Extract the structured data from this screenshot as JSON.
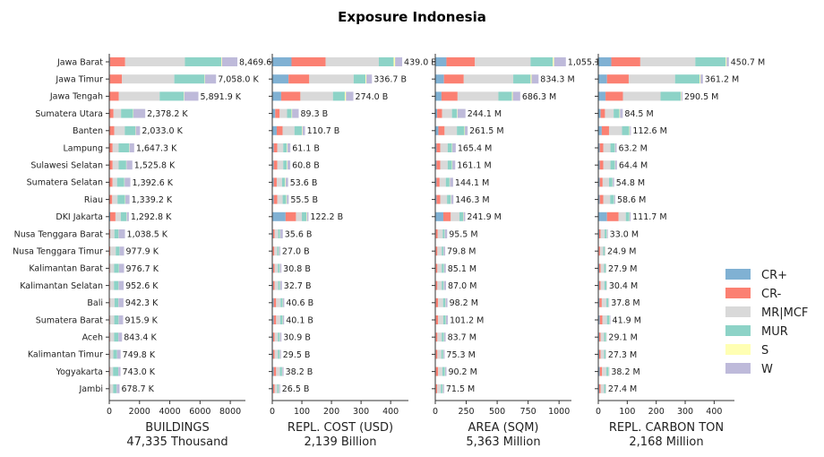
{
  "chart_data": {
    "type": "bar",
    "title": "Exposure Indonesia",
    "categories": [
      "Jawa Barat",
      "Jawa Timur",
      "Jawa Tengah",
      "Sumatera Utara",
      "Banten",
      "Lampung",
      "Sulawesi Selatan",
      "Sumatera Selatan",
      "Riau",
      "DKI Jakarta",
      "Nusa Tenggara Barat",
      "Nusa Tenggara Timur",
      "Kalimantan Barat",
      "Kalimantan Selatan",
      "Bali",
      "Sumatera Barat",
      "Aceh",
      "Kalimantan Timur",
      "Yogyakarta",
      "Jambi"
    ],
    "legend": {
      "position": "right",
      "entries": [
        {
          "name": "CR+",
          "color": "#80b1d3"
        },
        {
          "name": "CR-",
          "color": "#fb8072"
        },
        {
          "name": "MR|MCF",
          "color": "#d9d9d9"
        },
        {
          "name": "MUR",
          "color": "#8dd3c7"
        },
        {
          "name": "S",
          "color": "#ffffb3"
        },
        {
          "name": "W",
          "color": "#bebada"
        }
      ]
    },
    "panels": [
      {
        "xlabel": "BUILDINGS",
        "total_label": "47,335 Thousand",
        "xlim": [
          0,
          9000
        ],
        "xticks": [
          0,
          2000,
          4000,
          6000,
          8000
        ],
        "tick_labels": [
          "0",
          "2000",
          "4000",
          "6000",
          "8000"
        ],
        "value_labels": [
          "8,469.6 K",
          "7,058.0 K",
          "5,891.9 K",
          "2,378.2 K",
          "2,033.0 K",
          "1,647.3 K",
          "1,525.8 K",
          "1,392.6 K",
          "1,339.2 K",
          "1,292.8 K",
          "1,038.5 K",
          "977.9 K",
          "976.7 K",
          "952.6 K",
          "942.3 K",
          "915.9 K",
          "843.4 K",
          "749.8 K",
          "743.0 K",
          "678.7 K"
        ],
        "series": [
          {
            "name": "CR+",
            "values": [
              50,
              40,
              30,
              30,
              25,
              20,
              20,
              15,
              15,
              60,
              10,
              10,
              10,
              10,
              10,
              10,
              10,
              10,
              10,
              10
            ]
          },
          {
            "name": "CR-",
            "values": [
              1000,
              800,
              600,
              250,
              300,
              200,
              200,
              200,
              180,
              350,
              50,
              50,
              40,
              40,
              40,
              40,
              40,
              40,
              40,
              30
            ]
          },
          {
            "name": "MR|MCF",
            "values": [
              3950,
              3460,
              2700,
              500,
              700,
              400,
              400,
              300,
              350,
              350,
              280,
              370,
              270,
              260,
              300,
              280,
              270,
              220,
              200,
              220
            ]
          },
          {
            "name": "MUR",
            "values": [
              2400,
              2000,
              1600,
              800,
              700,
              700,
              500,
              480,
              500,
              382,
              270,
              247,
              320,
              300,
              250,
              285,
              273,
              235,
              343,
              220
            ]
          },
          {
            "name": "S",
            "values": [
              50,
              30,
              30,
              20,
              20,
              20,
              20,
              20,
              20,
              20,
              10,
              10,
              10,
              10,
              10,
              10,
              10,
              10,
              10,
              10
            ]
          },
          {
            "name": "W",
            "values": [
              1019.6,
              728,
              931.9,
              778.2,
              288,
              307.3,
              385.8,
              377.6,
              274.2,
              130.8,
              418.5,
              290.9,
              326.7,
              332.6,
              332.3,
              290.9,
              240.4,
              234.8,
              140,
              188.7
            ]
          }
        ]
      },
      {
        "xlabel": "REPL. COST (USD)",
        "total_label": "2,139 Billion",
        "xlim": [
          0,
          460
        ],
        "xticks": [
          0,
          100,
          200,
          300,
          400
        ],
        "tick_labels": [
          "0",
          "100",
          "200",
          "300",
          "400"
        ],
        "value_labels": [
          "439.0 B",
          "336.7 B",
          "274.0 B",
          "89.3 B",
          "110.7 B",
          "61.1 B",
          "60.8 B",
          "53.6 B",
          "55.5 B",
          "122.2 B",
          "35.6 B",
          "27.0 B",
          "30.8 B",
          "32.7 B",
          "40.6 B",
          "40.1 B",
          "30.9 B",
          "29.5 B",
          "38.2 B",
          "26.5 B"
        ],
        "series": [
          {
            "name": "CR+",
            "values": [
              65,
              55,
              30,
              10,
              15,
              5,
              5,
              5,
              5,
              45,
              3,
              2,
              3,
              3,
              5,
              5,
              3,
              3,
              5,
              3
            ]
          },
          {
            "name": "CR-",
            "values": [
              115,
              70,
              65,
              15,
              20,
              12,
              12,
              10,
              12,
              35,
              5,
              5,
              5,
              5,
              8,
              8,
              5,
              5,
              8,
              5
            ]
          },
          {
            "name": "MR|MCF",
            "values": [
              180,
              150,
              110,
              25,
              40,
              20,
              20,
              18,
              18,
              20,
              12,
              10,
              11,
              12,
              15,
              14,
              11,
              11,
              13,
              9
            ]
          },
          {
            "name": "MUR",
            "values": [
              50,
              40,
              40,
              15,
              25,
              12,
              12,
              10,
              12,
              15,
              6,
              5,
              6,
              6,
              7,
              8,
              6,
              6,
              7,
              5
            ]
          },
          {
            "name": "S",
            "values": [
              5,
              3,
              4,
              2,
              2,
              2,
              2,
              2,
              2,
              2,
              1,
              1,
              1,
              1,
              1,
              1,
              1,
              1,
              1,
              1
            ]
          },
          {
            "name": "W",
            "values": [
              24,
              18.7,
              25,
              22.3,
              8.7,
              10.1,
              9.8,
              8.6,
              6.5,
              5.2,
              8.6,
              4,
              4.8,
              5.7,
              4.6,
              4.1,
              4.9,
              3.5,
              4.2,
              3.5
            ]
          }
        ]
      },
      {
        "xlabel": "AREA (SQM)",
        "total_label": "5,363 Million",
        "xlim": [
          0,
          1100
        ],
        "xticks": [
          0,
          250,
          500,
          750,
          1000
        ],
        "tick_labels": [
          "0",
          "250",
          "500",
          "750",
          "1000"
        ],
        "value_labels": [
          "1,055.1 M",
          "834.3 M",
          "686.3 M",
          "244.1 M",
          "261.5 M",
          "165.4 M",
          "161.1 M",
          "144.1 M",
          "146.3 M",
          "241.9 M",
          "95.5 M",
          "79.8 M",
          "85.1 M",
          "87.0 M",
          "98.2 M",
          "101.2 M",
          "83.7 M",
          "75.3 M",
          "90.2 M",
          "71.5 M"
        ],
        "series": [
          {
            "name": "CR+",
            "values": [
              90,
              70,
              50,
              15,
              25,
              10,
              10,
              10,
              10,
              65,
              5,
              5,
              5,
              5,
              5,
              5,
              5,
              5,
              5,
              5
            ]
          },
          {
            "name": "CR-",
            "values": [
              230,
              160,
              130,
              40,
              50,
              30,
              30,
              25,
              30,
              60,
              15,
              12,
              12,
              12,
              18,
              18,
              12,
              12,
              18,
              10
            ]
          },
          {
            "name": "MR|MCF",
            "values": [
              450,
              400,
              330,
              80,
              100,
              60,
              60,
              50,
              55,
              70,
              40,
              35,
              35,
              35,
              40,
              42,
              35,
              32,
              35,
              30
            ]
          },
          {
            "name": "MUR",
            "values": [
              180,
              140,
              110,
              40,
              60,
              35,
              35,
              30,
              30,
              30,
              15,
              13,
              18,
              15,
              18,
              20,
              18,
              15,
              20,
              15
            ]
          },
          {
            "name": "S",
            "values": [
              10,
              8,
              6,
              4,
              4,
              3,
              3,
              3,
              3,
              3,
              2,
              2,
              2,
              2,
              2,
              2,
              2,
              2,
              2,
              2
            ]
          },
          {
            "name": "W",
            "values": [
              95.1,
              56.3,
              60.3,
              65.1,
              22.5,
              27.4,
              23.1,
              26.1,
              18.3,
              13.9,
              18.5,
              12.8,
              13.1,
              18,
              15.2,
              14.2,
              11.7,
              9.3,
              10.2,
              9.5
            ]
          }
        ]
      },
      {
        "xlabel": "REPL. CARBON TON",
        "total_label": "2,168 Million",
        "xlim": [
          0,
          470
        ],
        "xticks": [
          0,
          100,
          200,
          300,
          400
        ],
        "tick_labels": [
          "0",
          "100",
          "200",
          "300",
          "400"
        ],
        "value_labels": [
          "450.7 M",
          "361.2 M",
          "290.5 M",
          "84.5 M",
          "112.6 M",
          "63.2 M",
          "64.4 M",
          "54.8 M",
          "58.6 M",
          "111.7 M",
          "33.0 M",
          "24.9 M",
          "27.9 M",
          "30.4 M",
          "37.8 M",
          "41.9 M",
          "29.1 M",
          "27.3 M",
          "38.2 M",
          "27.4 M"
        ],
        "series": [
          {
            "name": "CR+",
            "values": [
              45,
              30,
              25,
              8,
              12,
              5,
              5,
              5,
              5,
              30,
              3,
              2,
              3,
              3,
              4,
              5,
              3,
              3,
              5,
              3
            ]
          },
          {
            "name": "CR-",
            "values": [
              100,
              75,
              60,
              15,
              25,
              12,
              12,
              10,
              12,
              40,
              5,
              4,
              5,
              5,
              8,
              9,
              5,
              5,
              8,
              5
            ]
          },
          {
            "name": "MR|MCF",
            "values": [
              190,
              160,
              130,
              30,
              45,
              25,
              25,
              22,
              24,
              25,
              14,
              11,
              12,
              13,
              16,
              16,
              12,
              12,
              15,
              12
            ]
          },
          {
            "name": "MUR",
            "values": [
              105,
              85,
              70,
              20,
              25,
              15,
              15,
              12,
              13,
              12,
              7,
              5,
              6,
              7,
              7,
              9,
              7,
              5,
              8,
              5
            ]
          },
          {
            "name": "S",
            "values": [
              3,
              3,
              2,
              2,
              2,
              1,
              1,
              1,
              1,
              1,
              1,
              1,
              1,
              1,
              1,
              1,
              1,
              1,
              1,
              1
            ]
          },
          {
            "name": "W",
            "values": [
              7.7,
              8.2,
              3.5,
              9.5,
              3.6,
              5.2,
              6.4,
              4.8,
              3.6,
              3.7,
              3,
              1.9,
              0.9,
              1.4,
              1.8,
              1.9,
              1.1,
              1.3,
              1.2,
              1.4
            ]
          }
        ]
      }
    ]
  }
}
